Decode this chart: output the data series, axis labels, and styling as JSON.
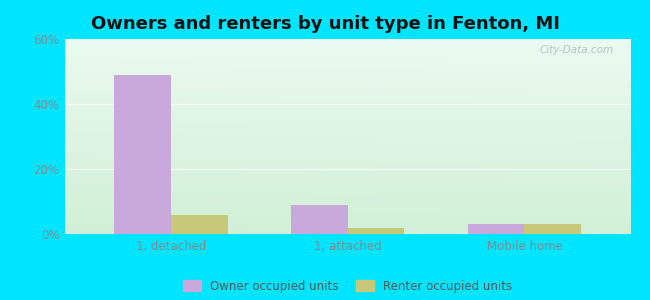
{
  "title": "Owners and renters by unit type in Fenton, MI",
  "categories": [
    "1, detached",
    "1, attached",
    "Mobile home"
  ],
  "owner_values": [
    49,
    9,
    3
  ],
  "renter_values": [
    6,
    2,
    3
  ],
  "owner_color": "#c9a8dc",
  "renter_color": "#c8c87a",
  "ylim": [
    0,
    60
  ],
  "yticks": [
    0,
    20,
    40,
    60
  ],
  "ytick_labels": [
    "0%",
    "20%",
    "40%",
    "60%"
  ],
  "background_outer": "#00e5ff",
  "watermark": "City-Data.com",
  "legend_owner": "Owner occupied units",
  "legend_renter": "Renter occupied units",
  "bar_width": 0.32,
  "title_fontsize": 13,
  "grid_color": "#ddddcc",
  "tick_color": "#888888"
}
